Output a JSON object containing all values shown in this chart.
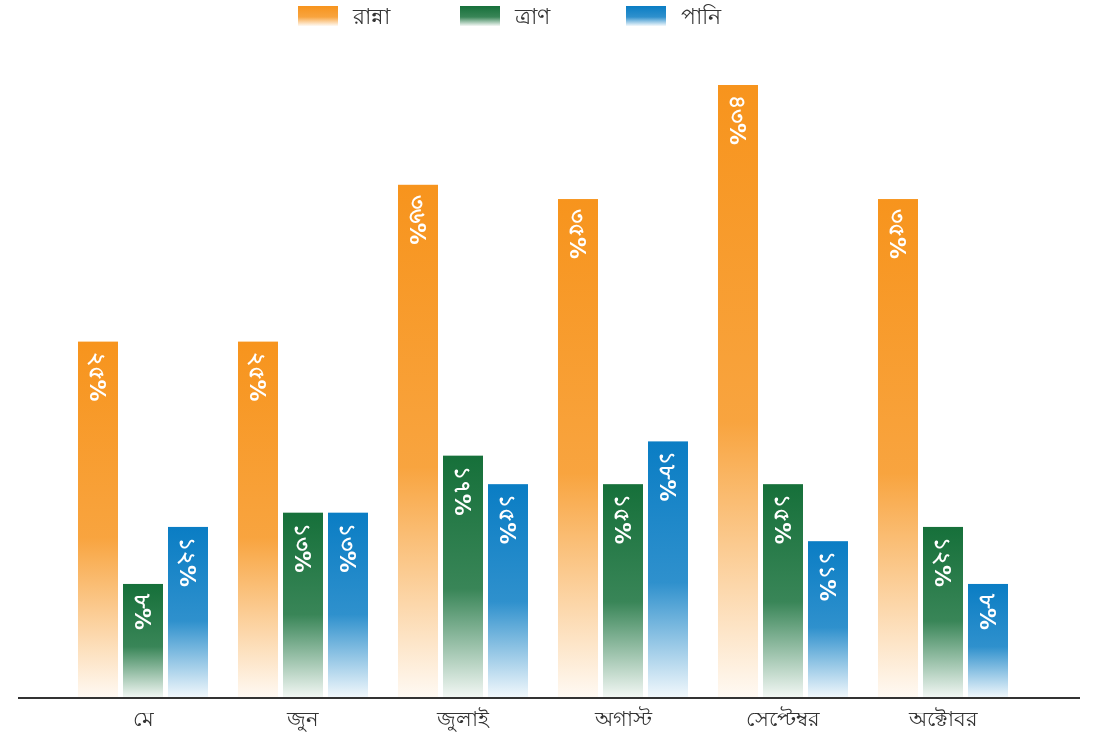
{
  "chart_data": {
    "type": "bar",
    "categories": [
      "মে",
      "জুন",
      "জুলাই",
      "অগাস্ট",
      "সেপ্টেম্বর",
      "অক্টোবর"
    ],
    "series": [
      {
        "name": "রান্না",
        "color": "#f7941d",
        "values": [
          25,
          25,
          36,
          35,
          43,
          35
        ],
        "value_labels": [
          "২৫%",
          "২৫%",
          "৩৬%",
          "৩৫%",
          "৪৩%",
          "৩৫%"
        ]
      },
      {
        "name": "ত্রাণ",
        "color": "#16703a",
        "values": [
          8,
          13,
          17,
          15,
          15,
          12
        ],
        "value_labels": [
          "৮%",
          "১৩%",
          "১৭%",
          "১৫%",
          "১৫%",
          "১২%"
        ]
      },
      {
        "name": "পানি",
        "color": "#0a7dc4",
        "values": [
          12,
          13,
          15,
          18,
          11,
          8
        ],
        "value_labels": [
          "১২%",
          "১৩%",
          "১৫%",
          "১৮%",
          "১১%",
          "৮%"
        ]
      }
    ],
    "legend": "top"
  }
}
